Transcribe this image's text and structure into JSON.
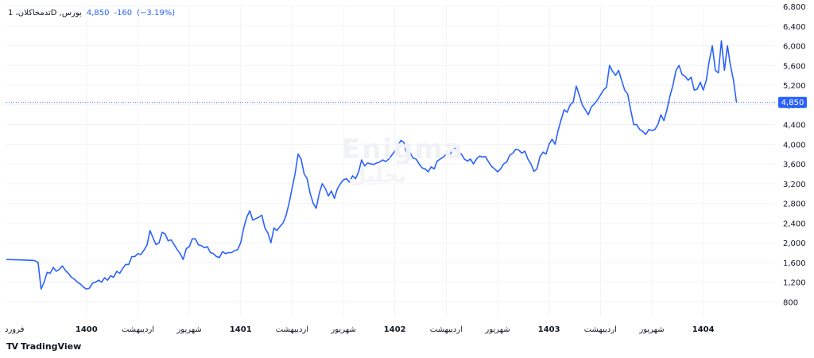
{
  "legend": {
    "symbol": "1 ،تدمخا‌کلان‌D ,بورس",
    "last": "4,850",
    "change": "-160",
    "change_pct": "(−3.19%)"
  },
  "watermark": {
    "line1": "Enigma",
    "line2": "تحلیل"
  },
  "branding": {
    "logo": "TV",
    "text": "TradingView"
  },
  "colors": {
    "line": "#2962ff",
    "grid": "#f0f3fa",
    "price_label_bg": "#2962ff",
    "text": "#131722"
  },
  "chart_data": {
    "type": "line",
    "title": "",
    "xlabel": "",
    "ylabel": "",
    "ylim": [
      500,
      6800
    ],
    "y_ticks": [
      800,
      1200,
      1600,
      2000,
      2400,
      2800,
      3200,
      3600,
      4000,
      4400,
      4800,
      5200,
      5600,
      6000,
      6400,
      6800
    ],
    "y_tick_labels": [
      "800",
      "1,200",
      "1,600",
      "2,000",
      "2,400",
      "2,800",
      "3,200",
      "3,600",
      "4,000",
      "4,400",
      "4,800",
      "5,200",
      "5,600",
      "6,000",
      "6,400",
      "6,800"
    ],
    "x_ticks": [
      {
        "t": 0,
        "label": "فرورد",
        "bold": false
      },
      {
        "t": 104,
        "label": "1400",
        "bold": true
      },
      {
        "t": 172,
        "label": "اردیبهشت",
        "bold": false
      },
      {
        "t": 240,
        "label": "شهریور",
        "bold": false
      },
      {
        "t": 308,
        "label": "1401",
        "bold": true
      },
      {
        "t": 376,
        "label": "اردیبهشت",
        "bold": false
      },
      {
        "t": 444,
        "label": "شهریور",
        "bold": false
      },
      {
        "t": 512,
        "label": "1402",
        "bold": true
      },
      {
        "t": 580,
        "label": "اردیبهشت",
        "bold": false
      },
      {
        "t": 648,
        "label": "شهریور",
        "bold": false
      },
      {
        "t": 716,
        "label": "1403",
        "bold": true
      },
      {
        "t": 784,
        "label": "اردیبهشت",
        "bold": false
      },
      {
        "t": 852,
        "label": "شهریور",
        "bold": false
      },
      {
        "t": 920,
        "label": "1404",
        "bold": true
      }
    ],
    "x_range": [
      -2,
      1015
    ],
    "last_value": 4850,
    "last_value_label": "4,850",
    "series": [
      {
        "values": [
          [
            -2,
            1660
          ],
          [
            20,
            1650
          ],
          [
            35,
            1640
          ],
          [
            40,
            1600
          ],
          [
            44,
            1060
          ],
          [
            48,
            1200
          ],
          [
            52,
            1400
          ],
          [
            56,
            1380
          ],
          [
            60,
            1500
          ],
          [
            64,
            1420
          ],
          [
            68,
            1460
          ],
          [
            72,
            1530
          ],
          [
            76,
            1440
          ],
          [
            80,
            1380
          ],
          [
            84,
            1300
          ],
          [
            88,
            1260
          ],
          [
            92,
            1200
          ],
          [
            96,
            1160
          ],
          [
            100,
            1100
          ],
          [
            104,
            1060
          ],
          [
            108,
            1080
          ],
          [
            112,
            1180
          ],
          [
            116,
            1200
          ],
          [
            120,
            1240
          ],
          [
            124,
            1200
          ],
          [
            128,
            1290
          ],
          [
            132,
            1240
          ],
          [
            136,
            1330
          ],
          [
            140,
            1300
          ],
          [
            144,
            1420
          ],
          [
            148,
            1380
          ],
          [
            152,
            1480
          ],
          [
            156,
            1560
          ],
          [
            160,
            1560
          ],
          [
            164,
            1720
          ],
          [
            168,
            1720
          ],
          [
            172,
            1780
          ],
          [
            176,
            1760
          ],
          [
            180,
            1850
          ],
          [
            184,
            1950
          ],
          [
            188,
            2250
          ],
          [
            192,
            2100
          ],
          [
            196,
            1960
          ],
          [
            200,
            2000
          ],
          [
            204,
            2210
          ],
          [
            208,
            2180
          ],
          [
            212,
            2040
          ],
          [
            216,
            2060
          ],
          [
            220,
            1960
          ],
          [
            224,
            1860
          ],
          [
            228,
            1780
          ],
          [
            232,
            1660
          ],
          [
            236,
            1880
          ],
          [
            240,
            1920
          ],
          [
            244,
            2080
          ],
          [
            248,
            2080
          ],
          [
            252,
            1960
          ],
          [
            256,
            1940
          ],
          [
            260,
            1900
          ],
          [
            264,
            1920
          ],
          [
            268,
            1800
          ],
          [
            272,
            1780
          ],
          [
            276,
            1720
          ],
          [
            280,
            1700
          ],
          [
            284,
            1820
          ],
          [
            288,
            1780
          ],
          [
            292,
            1800
          ],
          [
            296,
            1800
          ],
          [
            300,
            1840
          ],
          [
            304,
            1860
          ],
          [
            308,
            2000
          ],
          [
            312,
            2300
          ],
          [
            316,
            2520
          ],
          [
            320,
            2650
          ],
          [
            324,
            2460
          ],
          [
            328,
            2490
          ],
          [
            332,
            2520
          ],
          [
            336,
            2560
          ],
          [
            340,
            2300
          ],
          [
            344,
            2200
          ],
          [
            348,
            2000
          ],
          [
            352,
            2300
          ],
          [
            356,
            2250
          ],
          [
            360,
            2330
          ],
          [
            364,
            2400
          ],
          [
            368,
            2550
          ],
          [
            372,
            2800
          ],
          [
            376,
            3100
          ],
          [
            380,
            3400
          ],
          [
            384,
            3800
          ],
          [
            388,
            3700
          ],
          [
            392,
            3400
          ],
          [
            396,
            3300
          ],
          [
            400,
            3000
          ],
          [
            404,
            2800
          ],
          [
            408,
            2700
          ],
          [
            412,
            3000
          ],
          [
            416,
            3200
          ],
          [
            420,
            3100
          ],
          [
            424,
            2950
          ],
          [
            428,
            3050
          ],
          [
            432,
            2900
          ],
          [
            436,
            3100
          ],
          [
            440,
            3200
          ],
          [
            444,
            3280
          ],
          [
            448,
            3300
          ],
          [
            452,
            3230
          ],
          [
            456,
            3360
          ],
          [
            460,
            3300
          ],
          [
            464,
            3440
          ],
          [
            468,
            3680
          ],
          [
            472,
            3560
          ],
          [
            476,
            3620
          ],
          [
            480,
            3600
          ],
          [
            484,
            3590
          ],
          [
            488,
            3620
          ],
          [
            492,
            3640
          ],
          [
            496,
            3680
          ],
          [
            500,
            3650
          ],
          [
            504,
            3700
          ],
          [
            508,
            3780
          ],
          [
            512,
            3860
          ],
          [
            516,
            3960
          ],
          [
            520,
            4080
          ],
          [
            524,
            4040
          ],
          [
            528,
            3780
          ],
          [
            532,
            3840
          ],
          [
            536,
            3720
          ],
          [
            540,
            3700
          ],
          [
            544,
            3600
          ],
          [
            548,
            3520
          ],
          [
            552,
            3500
          ],
          [
            556,
            3440
          ],
          [
            560,
            3540
          ],
          [
            564,
            3500
          ],
          [
            568,
            3660
          ],
          [
            572,
            3700
          ],
          [
            576,
            3740
          ],
          [
            580,
            3800
          ],
          [
            584,
            3760
          ],
          [
            588,
            3880
          ],
          [
            592,
            3920
          ],
          [
            596,
            3820
          ],
          [
            600,
            3800
          ],
          [
            604,
            3700
          ],
          [
            608,
            3660
          ],
          [
            612,
            3700
          ],
          [
            616,
            3600
          ],
          [
            620,
            3700
          ],
          [
            624,
            3760
          ],
          [
            628,
            3740
          ],
          [
            632,
            3750
          ],
          [
            636,
            3640
          ],
          [
            640,
            3550
          ],
          [
            644,
            3500
          ],
          [
            648,
            3440
          ],
          [
            652,
            3500
          ],
          [
            656,
            3600
          ],
          [
            660,
            3640
          ],
          [
            664,
            3780
          ],
          [
            668,
            3820
          ],
          [
            672,
            3900
          ],
          [
            676,
            3880
          ],
          [
            680,
            3820
          ],
          [
            684,
            3860
          ],
          [
            688,
            3700
          ],
          [
            692,
            3600
          ],
          [
            696,
            3450
          ],
          [
            700,
            3500
          ],
          [
            704,
            3750
          ],
          [
            708,
            3840
          ],
          [
            712,
            3800
          ],
          [
            716,
            4000
          ],
          [
            720,
            4100
          ],
          [
            724,
            4000
          ],
          [
            728,
            4280
          ],
          [
            732,
            4500
          ],
          [
            736,
            4700
          ],
          [
            740,
            4650
          ],
          [
            744,
            4800
          ],
          [
            748,
            4860
          ],
          [
            752,
            5180
          ],
          [
            756,
            5000
          ],
          [
            760,
            4800
          ],
          [
            764,
            4700
          ],
          [
            768,
            4600
          ],
          [
            772,
            4760
          ],
          [
            776,
            4820
          ],
          [
            780,
            4900
          ],
          [
            784,
            5000
          ],
          [
            788,
            5100
          ],
          [
            792,
            5160
          ],
          [
            796,
            5600
          ],
          [
            800,
            5480
          ],
          [
            804,
            5400
          ],
          [
            808,
            5500
          ],
          [
            812,
            5300
          ],
          [
            816,
            5100
          ],
          [
            820,
            5020
          ],
          [
            824,
            4700
          ],
          [
            828,
            4400
          ],
          [
            832,
            4400
          ],
          [
            836,
            4300
          ],
          [
            840,
            4260
          ],
          [
            844,
            4200
          ],
          [
            848,
            4300
          ],
          [
            852,
            4280
          ],
          [
            856,
            4300
          ],
          [
            860,
            4400
          ],
          [
            864,
            4600
          ],
          [
            868,
            4480
          ],
          [
            872,
            4700
          ],
          [
            876,
            4980
          ],
          [
            880,
            5200
          ],
          [
            884,
            5500
          ],
          [
            888,
            5600
          ],
          [
            892,
            5420
          ],
          [
            896,
            5380
          ],
          [
            900,
            5300
          ],
          [
            904,
            5360
          ],
          [
            908,
            5100
          ],
          [
            912,
            5120
          ],
          [
            916,
            5260
          ],
          [
            920,
            5100
          ],
          [
            924,
            5300
          ],
          [
            928,
            5700
          ],
          [
            932,
            6000
          ],
          [
            936,
            5500
          ],
          [
            940,
            5450
          ],
          [
            944,
            6100
          ],
          [
            948,
            5500
          ],
          [
            952,
            6000
          ],
          [
            956,
            5600
          ],
          [
            960,
            5300
          ],
          [
            964,
            4850
          ]
        ]
      }
    ]
  }
}
